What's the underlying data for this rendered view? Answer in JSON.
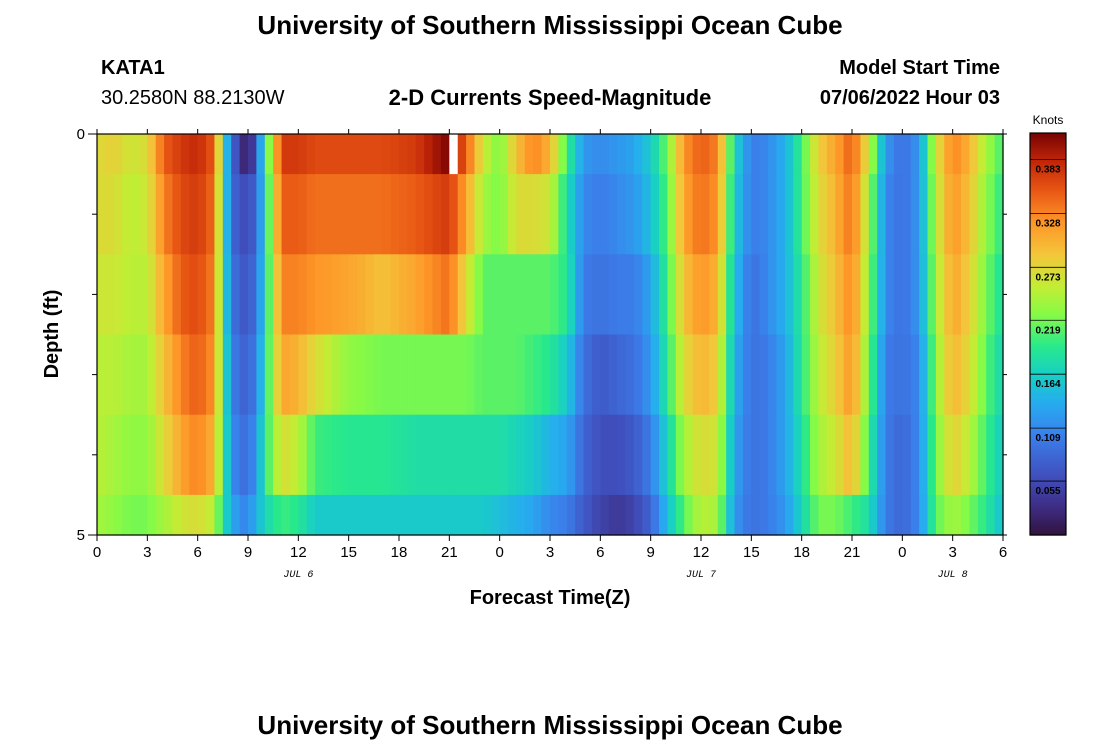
{
  "header": {
    "title": "University of Southern Mississippi Ocean Cube",
    "station": "KATA1",
    "coords": "30.2580N  88.2130W",
    "subtitle": "2-D Currents Speed-Magnitude",
    "model_label": "Model Start Time",
    "model_time": "07/06/2022 Hour 03"
  },
  "footer": {
    "title": "University of Southern Mississippi Ocean Cube"
  },
  "chart_data": {
    "type": "heatmap",
    "title": "2-D Currents Speed-Magnitude",
    "xlabel": "Forecast Time(Z)",
    "ylabel": "Depth (ft)",
    "x_tick_labels": [
      "0",
      "3",
      "6",
      "9",
      "12",
      "15",
      "18",
      "21",
      "0",
      "3",
      "6",
      "9",
      "12",
      "15",
      "18",
      "21",
      "0",
      "3",
      "6"
    ],
    "date_labels": [
      {
        "text": "JUL 6",
        "hour": 12
      },
      {
        "text": "JUL 7",
        "hour": 36
      },
      {
        "text": "JUL 8",
        "hour": 51
      }
    ],
    "y_tick_labels": [
      "0",
      "5"
    ],
    "ylim": [
      0,
      5
    ],
    "x_range_hours": [
      0,
      54
    ],
    "hours_per_column": 0.5,
    "depth_bins": [
      0,
      0.5,
      1.5,
      2.5,
      3.5,
      4.5,
      5
    ],
    "colorbar": {
      "unit": "Knots",
      "range": [
        0.0,
        0.41
      ],
      "tick_values": [
        0.383,
        0.328,
        0.273,
        0.219,
        0.164,
        0.109,
        0.055
      ],
      "tick_labels": [
        "0.383",
        "0.328",
        "0.273",
        "0.219",
        "0.164",
        "0.109",
        "0.055"
      ]
    },
    "profile_hours": [
      0,
      1,
      2,
      3,
      4,
      5,
      6,
      7,
      7.5,
      8,
      8.5,
      9,
      9.5,
      10,
      11,
      12,
      13,
      15,
      17,
      19,
      21,
      22,
      23,
      24,
      25,
      26,
      27,
      28,
      29,
      30,
      31,
      32,
      33,
      34,
      35,
      36,
      37,
      38,
      39,
      40,
      41,
      42,
      43,
      44,
      45,
      46,
      47,
      48,
      49,
      50,
      51,
      52,
      53,
      54
    ],
    "speed_profiles": [
      [
        0.27,
        0.27,
        0.26,
        0.25,
        0.25,
        0.24
      ],
      [
        0.28,
        0.27,
        0.26,
        0.25,
        0.24,
        0.23
      ],
      [
        0.26,
        0.25,
        0.25,
        0.24,
        0.23,
        0.22
      ],
      [
        0.27,
        0.26,
        0.25,
        0.24,
        0.23,
        0.22
      ],
      [
        0.35,
        0.33,
        0.31,
        0.29,
        0.27,
        0.24
      ],
      [
        0.37,
        0.36,
        0.35,
        0.33,
        0.31,
        0.26
      ],
      [
        0.38,
        0.37,
        0.36,
        0.35,
        0.33,
        0.27
      ],
      [
        0.35,
        0.34,
        0.33,
        0.32,
        0.3,
        0.25
      ],
      [
        0.2,
        0.19,
        0.19,
        0.2,
        0.2,
        0.18
      ],
      [
        0.08,
        0.09,
        0.1,
        0.11,
        0.12,
        0.14
      ],
      [
        0.05,
        0.06,
        0.07,
        0.08,
        0.09,
        0.11
      ],
      [
        0.0,
        0.06,
        0.07,
        0.08,
        0.09,
        0.11
      ],
      [
        0.08,
        0.08,
        0.09,
        0.1,
        0.12,
        0.14
      ],
      [
        0.18,
        0.17,
        0.17,
        0.18,
        0.19,
        0.17
      ],
      [
        0.37,
        0.35,
        0.33,
        0.31,
        0.27,
        0.2
      ],
      [
        0.37,
        0.35,
        0.33,
        0.3,
        0.25,
        0.19
      ],
      [
        0.36,
        0.34,
        0.32,
        0.27,
        0.2,
        0.16
      ],
      [
        0.36,
        0.34,
        0.31,
        0.23,
        0.19,
        0.16
      ],
      [
        0.36,
        0.34,
        0.29,
        0.22,
        0.19,
        0.16
      ],
      [
        0.37,
        0.35,
        0.31,
        0.22,
        0.18,
        0.16
      ],
      [
        0.41,
        0.37,
        0.34,
        0.22,
        0.18,
        0.16
      ],
      [
        0.35,
        0.31,
        0.27,
        0.22,
        0.18,
        0.16
      ],
      [
        0.26,
        0.24,
        0.21,
        0.21,
        0.18,
        0.16
      ],
      [
        0.22,
        0.22,
        0.21,
        0.21,
        0.18,
        0.15
      ],
      [
        0.29,
        0.27,
        0.21,
        0.21,
        0.17,
        0.14
      ],
      [
        0.33,
        0.27,
        0.21,
        0.2,
        0.16,
        0.13
      ],
      [
        0.3,
        0.26,
        0.21,
        0.19,
        0.14,
        0.11
      ],
      [
        0.2,
        0.18,
        0.19,
        0.16,
        0.13,
        0.1
      ],
      [
        0.12,
        0.11,
        0.1,
        0.09,
        0.08,
        0.07
      ],
      [
        0.11,
        0.1,
        0.09,
        0.07,
        0.06,
        0.05
      ],
      [
        0.12,
        0.11,
        0.1,
        0.08,
        0.06,
        0.04
      ],
      [
        0.13,
        0.12,
        0.1,
        0.09,
        0.07,
        0.05
      ],
      [
        0.16,
        0.15,
        0.13,
        0.12,
        0.1,
        0.08
      ],
      [
        0.22,
        0.21,
        0.2,
        0.19,
        0.17,
        0.15
      ],
      [
        0.32,
        0.31,
        0.29,
        0.27,
        0.24,
        0.21
      ],
      [
        0.35,
        0.34,
        0.32,
        0.3,
        0.27,
        0.25
      ],
      [
        0.33,
        0.32,
        0.3,
        0.28,
        0.26,
        0.24
      ],
      [
        0.17,
        0.16,
        0.15,
        0.14,
        0.13,
        0.12
      ],
      [
        0.1,
        0.1,
        0.09,
        0.09,
        0.09,
        0.09
      ],
      [
        0.11,
        0.11,
        0.11,
        0.1,
        0.1,
        0.1
      ],
      [
        0.14,
        0.14,
        0.14,
        0.13,
        0.13,
        0.12
      ],
      [
        0.2,
        0.2,
        0.19,
        0.19,
        0.18,
        0.17
      ],
      [
        0.28,
        0.27,
        0.26,
        0.25,
        0.24,
        0.22
      ],
      [
        0.31,
        0.3,
        0.29,
        0.28,
        0.26,
        0.22
      ],
      [
        0.35,
        0.34,
        0.33,
        0.32,
        0.3,
        0.2
      ],
      [
        0.26,
        0.24,
        0.23,
        0.22,
        0.2,
        0.18
      ],
      [
        0.12,
        0.11,
        0.11,
        0.1,
        0.1,
        0.1
      ],
      [
        0.09,
        0.09,
        0.09,
        0.09,
        0.08,
        0.08
      ],
      [
        0.12,
        0.12,
        0.12,
        0.11,
        0.11,
        0.11
      ],
      [
        0.26,
        0.25,
        0.24,
        0.23,
        0.22,
        0.21
      ],
      [
        0.33,
        0.32,
        0.31,
        0.3,
        0.28,
        0.24
      ],
      [
        0.3,
        0.29,
        0.28,
        0.27,
        0.25,
        0.22
      ],
      [
        0.24,
        0.23,
        0.22,
        0.21,
        0.2,
        0.19
      ],
      [
        0.2,
        0.19,
        0.18,
        0.17,
        0.16,
        0.15
      ]
    ],
    "no_data_cells": [
      {
        "hour": 21,
        "depth_bin": 0
      }
    ]
  }
}
